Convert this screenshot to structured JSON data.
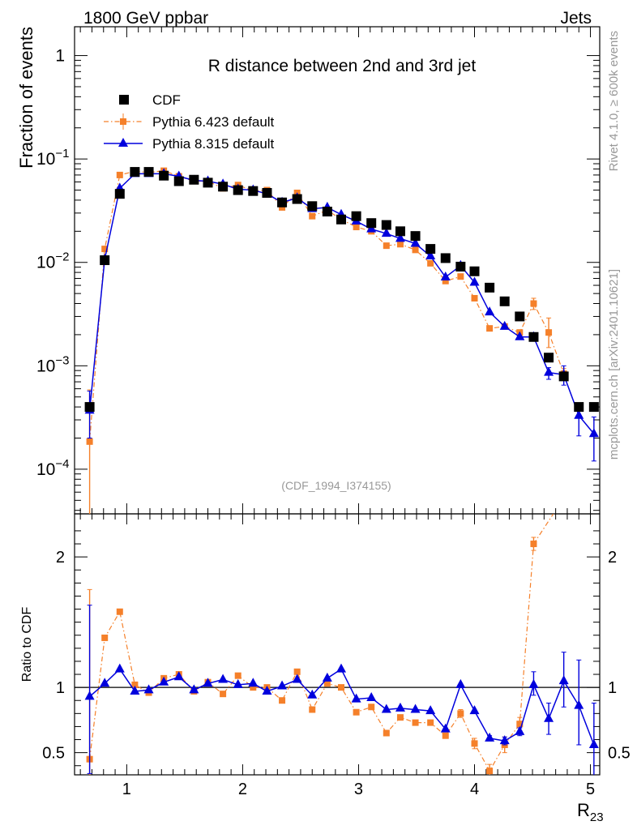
{
  "header": {
    "left": "1800 GeV ppbar",
    "right": "Jets",
    "side_top": "Rivet 4.1.0, ≥ 600k events",
    "side_bottom": "mcplots.cern.ch [arXiv:2401.10621]"
  },
  "colors": {
    "cdf": "#000000",
    "pythia6": "#f5802a",
    "pythia8": "#0000dd",
    "frame": "#000000",
    "watermark": "#999999"
  },
  "chart_data": [
    {
      "type": "scatter",
      "panel": "main",
      "title": "R distance between 2nd and 3rd jet",
      "ylabel": "Fraction of events",
      "xlabel": "",
      "analysis_tag": "(CDF_1994_I374155)",
      "yscale": "log",
      "xlim": [
        0.55,
        5.08
      ],
      "ylim": [
        3.7e-05,
        1.9
      ],
      "x_ticks": [
        1,
        2,
        3,
        4,
        5
      ],
      "y_ticks": [
        {
          "value": 0.0001,
          "base": "10",
          "exp": "−4"
        },
        {
          "value": 0.001,
          "base": "10",
          "exp": "−3"
        },
        {
          "value": 0.01,
          "base": "10",
          "exp": "−2"
        },
        {
          "value": 0.1,
          "base": "10",
          "exp": "−1"
        },
        {
          "value": 1,
          "base": "1",
          "exp": ""
        }
      ],
      "legend_position": "top-left",
      "series": [
        {
          "name": "CDF",
          "style": "marker",
          "x": [
            0.68,
            0.81,
            0.94,
            1.07,
            1.19,
            1.32,
            1.45,
            1.58,
            1.7,
            1.83,
            1.96,
            2.09,
            2.21,
            2.34,
            2.47,
            2.6,
            2.73,
            2.85,
            2.98,
            3.11,
            3.24,
            3.36,
            3.49,
            3.62,
            3.75,
            3.88,
            4.0,
            4.13,
            4.26,
            4.39,
            4.51,
            4.64,
            4.77,
            4.9,
            5.03
          ],
          "values": [
            0.0004,
            0.0105,
            0.046,
            0.075,
            0.075,
            0.069,
            0.061,
            0.063,
            0.059,
            0.054,
            0.05,
            0.049,
            0.047,
            0.038,
            0.041,
            0.035,
            0.031,
            0.026,
            0.028,
            0.024,
            0.023,
            0.02,
            0.018,
            0.0135,
            0.011,
            0.0091,
            0.0082,
            0.0057,
            0.0042,
            0.003,
            0.0019,
            0.0012,
            0.00079,
            0.0004,
            0.0004
          ]
        },
        {
          "name": "Pythia 6.423 default",
          "style": "dashdot-square",
          "x": [
            0.68,
            0.81,
            0.94,
            1.07,
            1.19,
            1.32,
            1.45,
            1.58,
            1.7,
            1.83,
            1.96,
            2.09,
            2.21,
            2.34,
            2.47,
            2.6,
            2.73,
            2.85,
            2.98,
            3.11,
            3.24,
            3.36,
            3.49,
            3.62,
            3.75,
            3.88,
            4.0,
            4.13,
            4.26,
            4.39,
            4.51,
            4.64,
            4.77
          ],
          "values": [
            0.000185,
            0.0135,
            0.07,
            0.076,
            0.074,
            0.077,
            0.068,
            0.061,
            0.061,
            0.052,
            0.056,
            0.049,
            0.05,
            0.034,
            0.047,
            0.028,
            0.032,
            0.026,
            0.022,
            0.02,
            0.0145,
            0.015,
            0.0132,
            0.0098,
            0.0066,
            0.0073,
            0.0045,
            0.0023,
            0.0024,
            0.0021,
            0.004,
            0.0021,
            0.00084
          ],
          "err_lo": [
            0.000185,
            0,
            0,
            0,
            0,
            0,
            0,
            0,
            0,
            0,
            0,
            0,
            0,
            0,
            0,
            0,
            0,
            0,
            0,
            0,
            0,
            0,
            0,
            0,
            0,
            0,
            0,
            0,
            0,
            0,
            0.0005,
            0.0006,
            0.0001
          ],
          "err_hi": [
            0.0004,
            0,
            0,
            0,
            0,
            0,
            0,
            0,
            0,
            0,
            0,
            0,
            0,
            0,
            0,
            0,
            0,
            0,
            0,
            0,
            0,
            0,
            0,
            0,
            0,
            0,
            0,
            0,
            0,
            0,
            0.0005,
            0.0008,
            0.0001
          ]
        },
        {
          "name": "Pythia 8.315 default",
          "style": "solid-triangle",
          "x": [
            0.68,
            0.81,
            0.94,
            1.07,
            1.19,
            1.32,
            1.45,
            1.58,
            1.7,
            1.83,
            1.96,
            2.09,
            2.21,
            2.34,
            2.47,
            2.6,
            2.73,
            2.85,
            2.98,
            3.11,
            3.24,
            3.36,
            3.49,
            3.62,
            3.75,
            3.88,
            4.0,
            4.13,
            4.26,
            4.39,
            4.51,
            4.64,
            4.77,
            4.9,
            5.03
          ],
          "values": [
            0.00037,
            0.0107,
            0.052,
            0.072,
            0.072,
            0.072,
            0.068,
            0.062,
            0.061,
            0.057,
            0.051,
            0.05,
            0.046,
            0.038,
            0.042,
            0.033,
            0.034,
            0.029,
            0.025,
            0.021,
            0.019,
            0.017,
            0.0152,
            0.0115,
            0.0072,
            0.0093,
            0.0064,
            0.0033,
            0.0024,
            0.0019,
            0.0019,
            0.00086,
            0.00082,
            0.00033,
            0.00022
          ],
          "err_lo": [
            0.00017,
            0,
            0,
            0,
            0,
            0,
            0,
            0,
            0,
            0,
            0,
            0,
            0,
            0,
            0,
            0,
            0,
            0,
            0,
            0,
            0,
            0,
            0,
            0,
            0,
            0,
            0,
            0,
            0,
            0,
            0,
            0.00012,
            0.00017,
            0.00012,
            0.0001
          ],
          "err_hi": [
            0.0002,
            0,
            0,
            0,
            0,
            0,
            0,
            0,
            0,
            0,
            0,
            0,
            0,
            0,
            0,
            0,
            0,
            0,
            0,
            0,
            0,
            0,
            0,
            0,
            0,
            0,
            0,
            0,
            0,
            0,
            0,
            0.0001,
            0.00018,
            0.0001,
            0.0001
          ]
        }
      ]
    },
    {
      "type": "line",
      "panel": "ratio",
      "ylabel": "Ratio to CDF",
      "xlabel": "R",
      "xlabel_sub": "23",
      "xlim": [
        0.55,
        5.08
      ],
      "ylim": [
        0.33,
        2.33
      ],
      "x_ticks": [
        1,
        2,
        3,
        4,
        5
      ],
      "y_ticks": [
        0.5,
        1,
        2
      ],
      "reference": 1,
      "series": [
        {
          "name": "Pythia 6.423 default",
          "style": "dashdot-square",
          "x": [
            0.68,
            0.81,
            0.94,
            1.07,
            1.19,
            1.32,
            1.45,
            1.58,
            1.7,
            1.83,
            1.96,
            2.09,
            2.21,
            2.34,
            2.47,
            2.6,
            2.73,
            2.85,
            2.98,
            3.11,
            3.24,
            3.36,
            3.49,
            3.62,
            3.75,
            3.88,
            4.0,
            4.13,
            4.26,
            4.39,
            4.51
          ],
          "values": [
            0.45,
            1.38,
            1.58,
            1.02,
            0.96,
            1.07,
            1.1,
            0.97,
            1.04,
            0.95,
            1.09,
            1.0,
            1.0,
            0.9,
            1.12,
            0.83,
            1.03,
            1.0,
            0.81,
            0.85,
            0.65,
            0.77,
            0.73,
            0.73,
            0.63,
            0.8,
            0.57,
            0.36,
            0.56,
            0.72,
            2.1
          ],
          "err_lo": [
            0.45,
            0,
            0,
            0,
            0,
            0,
            0,
            0,
            0,
            0,
            0,
            0,
            0,
            0,
            0,
            0,
            0,
            0,
            0,
            0,
            0,
            0,
            0,
            0,
            0,
            0.03,
            0.04,
            0.05,
            0.06,
            0.05,
            0.05
          ],
          "err_hi": [
            1.3,
            0,
            0,
            0,
            0,
            0,
            0,
            0,
            0,
            0,
            0,
            0,
            0,
            0,
            0,
            0,
            0,
            0,
            0,
            0,
            0,
            0,
            0,
            0,
            0,
            0.03,
            0.04,
            0.05,
            0.06,
            0.05,
            0.05
          ],
          "extend_to": {
            "x": 4.68,
            "value": 2.33
          }
        },
        {
          "name": "Pythia 8.315 default",
          "style": "solid-triangle",
          "x": [
            0.68,
            0.81,
            0.94,
            1.07,
            1.19,
            1.32,
            1.45,
            1.58,
            1.7,
            1.83,
            1.96,
            2.09,
            2.21,
            2.34,
            2.47,
            2.6,
            2.73,
            2.85,
            2.98,
            3.11,
            3.24,
            3.36,
            3.49,
            3.62,
            3.75,
            3.88,
            4.0,
            4.13,
            4.26,
            4.39,
            4.51,
            4.64,
            4.77,
            4.9,
            5.03
          ],
          "values": [
            0.93,
            1.03,
            1.14,
            0.97,
            0.98,
            1.04,
            1.08,
            0.98,
            1.03,
            1.06,
            1.02,
            1.03,
            0.97,
            1.01,
            1.06,
            0.94,
            1.07,
            1.14,
            0.91,
            0.92,
            0.83,
            0.84,
            0.83,
            0.82,
            0.68,
            1.02,
            0.82,
            0.61,
            0.59,
            0.66,
            1.02,
            0.76,
            1.05,
            0.86,
            0.56
          ],
          "err_lo": [
            0.59,
            0,
            0,
            0,
            0,
            0,
            0,
            0,
            0,
            0,
            0,
            0,
            0,
            0,
            0,
            0,
            0,
            0,
            0,
            0,
            0,
            0,
            0,
            0,
            0,
            0,
            0,
            0.02,
            0.03,
            0.03,
            0.08,
            0.12,
            0.2,
            0.3,
            0.28
          ],
          "err_hi": [
            0.7,
            0,
            0,
            0,
            0,
            0,
            0,
            0,
            0,
            0,
            0,
            0,
            0,
            0,
            0,
            0,
            0,
            0,
            0,
            0,
            0,
            0,
            0,
            0,
            0,
            0,
            0,
            0.02,
            0.03,
            0.03,
            0.1,
            0.12,
            0.22,
            0.35,
            0.32
          ]
        }
      ]
    }
  ]
}
